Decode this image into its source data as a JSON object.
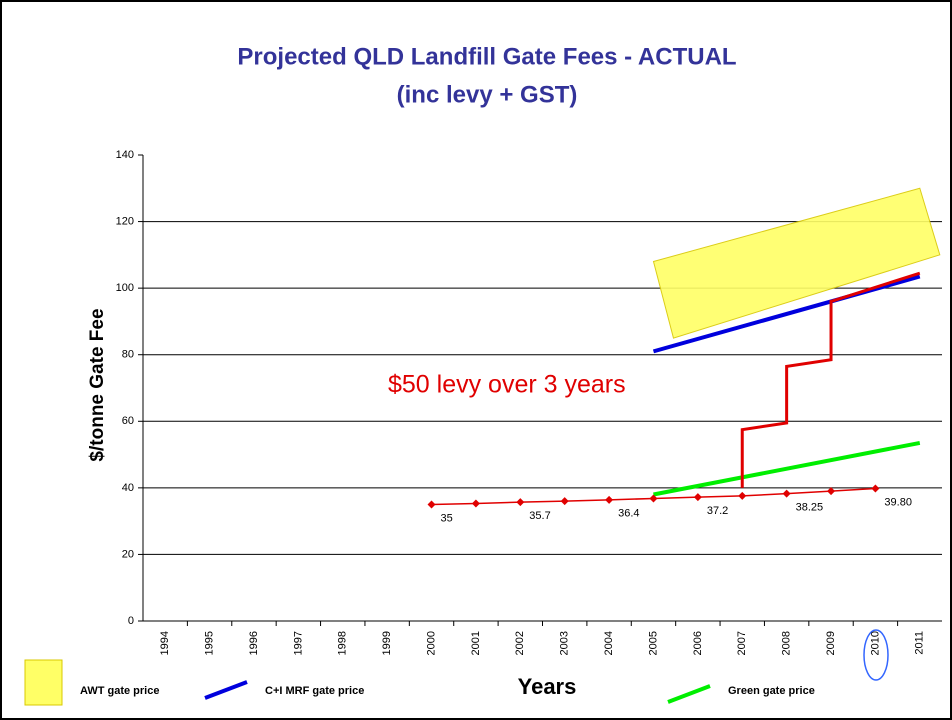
{
  "chart_data": {
    "type": "line",
    "title": [
      "Projected QLD Landfill Gate Fees - ACTUAL",
      "(inc levy + GST)"
    ],
    "title_color": "#333399",
    "xlabel": "Years",
    "ylabel": "$/tonne Gate Fee",
    "annotation": "$50 levy over 3 years",
    "annotation_color": "#e00000",
    "categories": [
      "1994",
      "1995",
      "1996",
      "1997",
      "1998",
      "1999",
      "2000",
      "2001",
      "2002",
      "2003",
      "2004",
      "2005",
      "2006",
      "2007",
      "2008",
      "2009",
      "2010",
      "2011"
    ],
    "ylim": [
      0,
      140
    ],
    "yticks": [
      0,
      20,
      40,
      60,
      80,
      100,
      120,
      140
    ],
    "grid": true,
    "gate_fee": {
      "color": "#e00000",
      "values": [
        null,
        null,
        null,
        null,
        null,
        null,
        35,
        35.3,
        35.7,
        36,
        36.4,
        36.8,
        37.2,
        37.6,
        38.25,
        39,
        39.8,
        null
      ],
      "value_labels": [
        null,
        null,
        null,
        null,
        null,
        null,
        "35",
        null,
        "35.7",
        null,
        "36.4",
        null,
        "37.2",
        null,
        "38.25",
        null,
        "39.80",
        null
      ]
    },
    "levy_step": {
      "color": "#e00000",
      "x": [
        2007,
        2007,
        2008,
        2008,
        2009,
        2009,
        2011
      ],
      "values": [
        40,
        57.5,
        59.5,
        76.5,
        78.5,
        96,
        104.5
      ]
    },
    "series": [
      {
        "name": "AWT gate price",
        "color": "#ffff66",
        "kind": "band",
        "x": [
          2005,
          2011
        ],
        "high": [
          108,
          130
        ],
        "low": [
          85,
          110
        ]
      },
      {
        "name": "C+I MRF gate price",
        "color": "#0000dd",
        "x": [
          2005,
          2011
        ],
        "values": [
          81,
          103.5
        ]
      },
      {
        "name": "Green gate price",
        "color": "#00ee00",
        "x": [
          2005,
          2011
        ],
        "values": [
          38,
          53.5
        ]
      }
    ]
  }
}
